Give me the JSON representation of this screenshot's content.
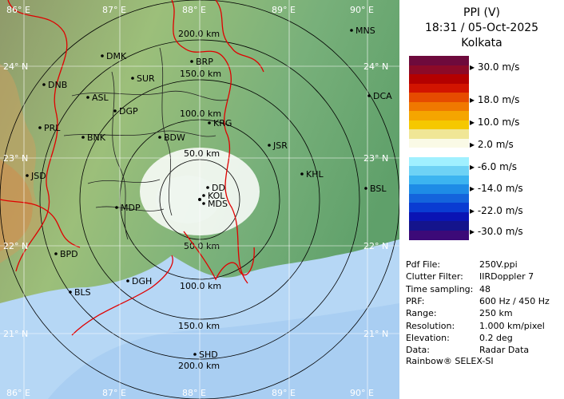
{
  "header": {
    "title": "PPI (V)",
    "datetime": "18:31 / 05-Oct-2025",
    "station": "Kolkata"
  },
  "colorbar": {
    "colors": [
      "#6e0a3c",
      "#8c0a28",
      "#b40000",
      "#d21400",
      "#e64b00",
      "#f07800",
      "#f5a500",
      "#f5c800",
      "#f0e696",
      "#fafae6",
      "#ffffff",
      "#a0f0ff",
      "#6ed2f5",
      "#3cb4f0",
      "#1e8ce6",
      "#1464dc",
      "#0a3cd2",
      "#0a14b4",
      "#14148c",
      "#3c0a78"
    ],
    "ticks": [
      {
        "label": "30.0 m/s"
      },
      {
        "label": "18.0 m/s"
      },
      {
        "label": "10.0 m/s"
      },
      {
        "label": "2.0 m/s"
      },
      {
        "label": "-6.0 m/s"
      },
      {
        "label": "-14.0 m/s"
      },
      {
        "label": "-22.0 m/s"
      },
      {
        "label": "-30.0 m/s"
      }
    ]
  },
  "info": [
    {
      "key": "Pdf File:",
      "value": "250V.ppi"
    },
    {
      "key": "Clutter Filter:",
      "value": "IIRDoppler 7"
    },
    {
      "key": "Time sampling:",
      "value": "48"
    },
    {
      "key": "PRF:",
      "value": "600 Hz / 450 Hz"
    },
    {
      "key": "Range:",
      "value": "250 km"
    },
    {
      "key": "Resolution:",
      "value": "1.000 km/pixel"
    },
    {
      "key": "Elevation:",
      "value": "0.2 deg"
    },
    {
      "key": "Data:",
      "value": "Radar Data"
    }
  ],
  "footer": "Rainbow® SELEX-SI",
  "map": {
    "lon_labels": [
      "86° E",
      "87° E",
      "88° E",
      "89° E",
      "90° E"
    ],
    "lat_labels": [
      "24° N",
      "23° N",
      "22° N",
      "21° N"
    ],
    "range_rings": [
      "50.0 km",
      "100.0 km",
      "150.0 km",
      "200.0 km",
      "200.0 km",
      "150.0 km",
      "100.0 km",
      "50.0 km"
    ],
    "cities": [
      "MNS",
      "DMK",
      "BRP",
      "DNB",
      "SUR",
      "ASL",
      "DGP",
      "DCA",
      "PRL",
      "KRG",
      "BNK",
      "BDW",
      "JSR",
      "KHL",
      "JSD",
      "DD",
      "KOL",
      "BSL",
      "MDP",
      "BPD",
      "DGH",
      "BLS",
      "SHD",
      "MDS"
    ],
    "land_color": "#7fb27a",
    "sea_color": "#b6d7f5",
    "border_color": "#e00000"
  }
}
